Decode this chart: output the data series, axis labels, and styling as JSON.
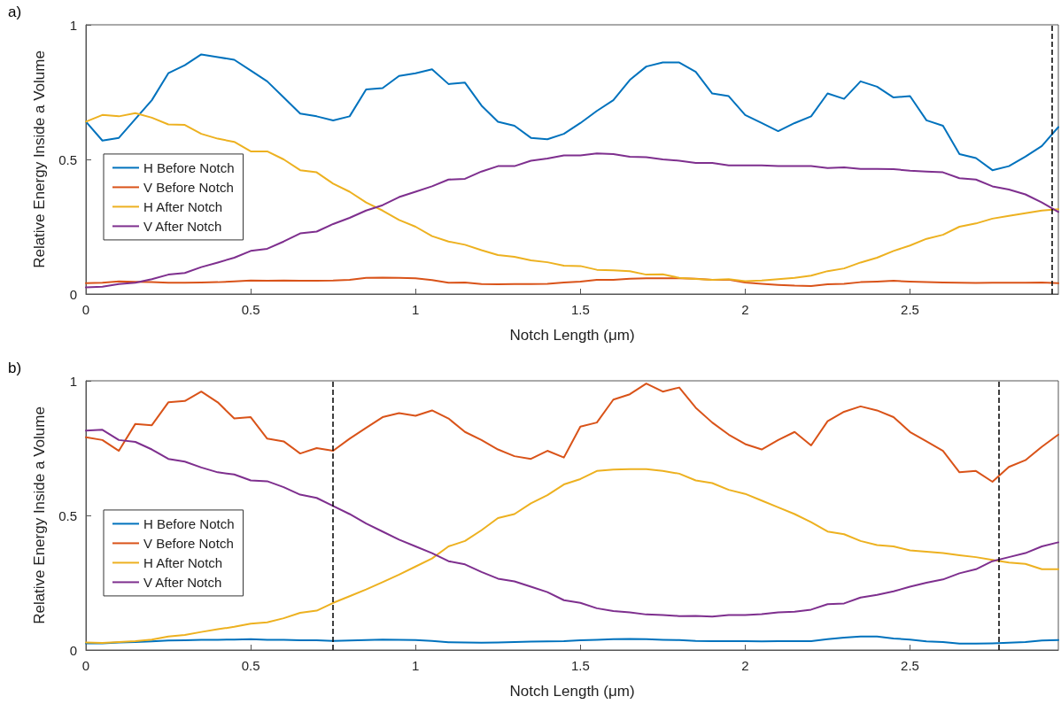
{
  "chart_data": [
    {
      "type": "line",
      "title": "a)",
      "xlabel": "Notch Length (μm)",
      "ylabel": "Relative Energy Inside a Volume",
      "x": [
        0,
        0.05,
        0.1,
        0.15,
        0.2,
        0.25,
        0.3,
        0.35,
        0.4,
        0.45,
        0.5,
        0.55,
        0.6,
        0.65,
        0.7,
        0.75,
        0.8,
        0.85,
        0.9,
        0.95,
        1,
        1.05,
        1.1,
        1.15,
        1.2,
        1.25,
        1.3,
        1.35,
        1.4,
        1.45,
        1.5,
        1.55,
        1.6,
        1.65,
        1.7,
        1.75,
        1.8,
        1.85,
        1.9,
        1.95,
        2,
        2.05,
        2.1,
        2.15,
        2.2,
        2.25,
        2.3,
        2.35,
        2.4,
        2.45,
        2.5,
        2.55,
        2.6,
        2.65,
        2.7,
        2.75,
        2.8,
        2.85,
        2.9,
        2.95
      ],
      "series": [
        {
          "name": "H Before Notch",
          "color": "#0072bd",
          "values": [
            0.64,
            0.57,
            0.58,
            0.65,
            0.72,
            0.82,
            0.85,
            0.89,
            0.88,
            0.87,
            0.83,
            0.79,
            0.73,
            0.67,
            0.66,
            0.645,
            0.66,
            0.76,
            0.765,
            0.81,
            0.82,
            0.835,
            0.78,
            0.785,
            0.7,
            0.64,
            0.625,
            0.58,
            0.575,
            0.595,
            0.635,
            0.68,
            0.72,
            0.795,
            0.845,
            0.86,
            0.86,
            0.825,
            0.745,
            0.735,
            0.665,
            0.635,
            0.605,
            0.635,
            0.66,
            0.745,
            0.725,
            0.79,
            0.77,
            0.73,
            0.735,
            0.645,
            0.625,
            0.52,
            0.505,
            0.46,
            0.475,
            0.51,
            0.55,
            0.62
          ]
        },
        {
          "name": "V Before Notch",
          "color": "#d95319",
          "values": [
            0.04,
            0.042,
            0.047,
            0.045,
            0.044,
            0.042,
            0.042,
            0.043,
            0.044,
            0.047,
            0.05,
            0.049,
            0.05,
            0.049,
            0.049,
            0.05,
            0.053,
            0.06,
            0.061,
            0.06,
            0.058,
            0.052,
            0.042,
            0.043,
            0.037,
            0.036,
            0.037,
            0.037,
            0.038,
            0.043,
            0.046,
            0.053,
            0.053,
            0.057,
            0.058,
            0.058,
            0.058,
            0.057,
            0.053,
            0.053,
            0.043,
            0.038,
            0.034,
            0.031,
            0.03,
            0.036,
            0.038,
            0.044,
            0.046,
            0.049,
            0.046,
            0.044,
            0.043,
            0.042,
            0.041,
            0.042,
            0.042,
            0.042,
            0.043,
            0.04
          ]
        },
        {
          "name": "H After Notch",
          "color": "#edb120",
          "values": [
            0.64,
            0.665,
            0.66,
            0.672,
            0.655,
            0.63,
            0.628,
            0.595,
            0.577,
            0.565,
            0.53,
            0.53,
            0.5,
            0.46,
            0.452,
            0.41,
            0.38,
            0.34,
            0.31,
            0.275,
            0.25,
            0.215,
            0.195,
            0.183,
            0.163,
            0.145,
            0.138,
            0.125,
            0.118,
            0.105,
            0.104,
            0.09,
            0.088,
            0.085,
            0.072,
            0.073,
            0.06,
            0.056,
            0.053,
            0.055,
            0.048,
            0.05,
            0.055,
            0.06,
            0.068,
            0.085,
            0.095,
            0.117,
            0.135,
            0.16,
            0.18,
            0.205,
            0.22,
            0.25,
            0.262,
            0.28,
            0.29,
            0.3,
            0.31,
            0.315
          ]
        },
        {
          "name": "V After Notch",
          "color": "#7e2f8e",
          "values": [
            0.025,
            0.027,
            0.037,
            0.042,
            0.055,
            0.072,
            0.078,
            0.1,
            0.117,
            0.135,
            0.16,
            0.168,
            0.195,
            0.225,
            0.232,
            0.26,
            0.283,
            0.31,
            0.33,
            0.36,
            0.38,
            0.4,
            0.425,
            0.428,
            0.455,
            0.475,
            0.475,
            0.495,
            0.503,
            0.515,
            0.515,
            0.522,
            0.52,
            0.51,
            0.508,
            0.5,
            0.495,
            0.487,
            0.487,
            0.478,
            0.478,
            0.478,
            0.475,
            0.475,
            0.475,
            0.468,
            0.47,
            0.465,
            0.465,
            0.464,
            0.458,
            0.455,
            0.452,
            0.43,
            0.425,
            0.4,
            0.388,
            0.37,
            0.34,
            0.305
          ]
        }
      ],
      "xlim": [
        0,
        2.95
      ],
      "xticks": [
        0,
        0.5,
        1,
        1.5,
        2,
        2.5
      ],
      "ylim": [
        0,
        1
      ],
      "yticks": [
        0,
        0.5,
        1
      ],
      "ref_lines": [
        {
          "axis": "x",
          "value": 2.93,
          "color": "#000000",
          "line_style": "dashed"
        }
      ],
      "grid": false,
      "legend": "left",
      "line_style": "solid",
      "marker": "none"
    },
    {
      "type": "line",
      "title": "b)",
      "xlabel": "Notch Length (μm)",
      "ylabel": "Relative Energy Inside a Volume",
      "x": [
        0,
        0.05,
        0.1,
        0.15,
        0.2,
        0.25,
        0.3,
        0.35,
        0.4,
        0.45,
        0.5,
        0.55,
        0.6,
        0.65,
        0.7,
        0.75,
        0.8,
        0.85,
        0.9,
        0.95,
        1,
        1.05,
        1.1,
        1.15,
        1.2,
        1.25,
        1.3,
        1.35,
        1.4,
        1.45,
        1.5,
        1.55,
        1.6,
        1.65,
        1.7,
        1.75,
        1.8,
        1.85,
        1.9,
        1.95,
        2,
        2.05,
        2.1,
        2.15,
        2.2,
        2.25,
        2.3,
        2.35,
        2.4,
        2.45,
        2.5,
        2.55,
        2.6,
        2.65,
        2.7,
        2.75,
        2.8,
        2.85,
        2.9,
        2.95
      ],
      "series": [
        {
          "name": "H Before Notch",
          "color": "#0072bd",
          "values": [
            0.025,
            0.025,
            0.028,
            0.03,
            0.032,
            0.035,
            0.036,
            0.038,
            0.038,
            0.039,
            0.04,
            0.038,
            0.038,
            0.036,
            0.036,
            0.034,
            0.035,
            0.037,
            0.039,
            0.038,
            0.037,
            0.034,
            0.029,
            0.028,
            0.027,
            0.028,
            0.03,
            0.031,
            0.032,
            0.033,
            0.036,
            0.038,
            0.04,
            0.041,
            0.04,
            0.038,
            0.037,
            0.034,
            0.033,
            0.033,
            0.033,
            0.032,
            0.033,
            0.033,
            0.033,
            0.04,
            0.046,
            0.05,
            0.05,
            0.043,
            0.039,
            0.032,
            0.03,
            0.024,
            0.024,
            0.025,
            0.027,
            0.03,
            0.035,
            0.037
          ]
        },
        {
          "name": "V Before Notch",
          "color": "#d95319",
          "values": [
            0.79,
            0.78,
            0.74,
            0.84,
            0.835,
            0.92,
            0.925,
            0.96,
            0.92,
            0.86,
            0.865,
            0.785,
            0.775,
            0.73,
            0.75,
            0.74,
            0.785,
            0.825,
            0.865,
            0.88,
            0.87,
            0.89,
            0.86,
            0.81,
            0.78,
            0.745,
            0.72,
            0.71,
            0.74,
            0.715,
            0.83,
            0.845,
            0.93,
            0.95,
            0.99,
            0.96,
            0.975,
            0.9,
            0.845,
            0.8,
            0.765,
            0.745,
            0.78,
            0.81,
            0.76,
            0.85,
            0.885,
            0.905,
            0.89,
            0.865,
            0.81,
            0.775,
            0.74,
            0.66,
            0.665,
            0.625,
            0.68,
            0.705,
            0.755,
            0.8
          ]
        },
        {
          "name": "H After Notch",
          "color": "#edb120",
          "values": [
            0.028,
            0.026,
            0.03,
            0.033,
            0.039,
            0.05,
            0.056,
            0.067,
            0.077,
            0.086,
            0.098,
            0.103,
            0.118,
            0.138,
            0.146,
            0.175,
            0.2,
            0.225,
            0.252,
            0.28,
            0.31,
            0.34,
            0.385,
            0.405,
            0.445,
            0.49,
            0.505,
            0.545,
            0.575,
            0.615,
            0.635,
            0.665,
            0.67,
            0.672,
            0.672,
            0.665,
            0.655,
            0.63,
            0.62,
            0.595,
            0.58,
            0.555,
            0.53,
            0.505,
            0.475,
            0.44,
            0.43,
            0.405,
            0.39,
            0.385,
            0.37,
            0.365,
            0.36,
            0.352,
            0.345,
            0.335,
            0.325,
            0.32,
            0.3,
            0.3
          ]
        },
        {
          "name": "V After Notch",
          "color": "#7e2f8e",
          "values": [
            0.815,
            0.818,
            0.78,
            0.773,
            0.745,
            0.71,
            0.7,
            0.678,
            0.66,
            0.652,
            0.63,
            0.627,
            0.605,
            0.577,
            0.565,
            0.535,
            0.505,
            0.47,
            0.44,
            0.41,
            0.385,
            0.36,
            0.33,
            0.318,
            0.29,
            0.265,
            0.255,
            0.235,
            0.215,
            0.185,
            0.175,
            0.155,
            0.145,
            0.14,
            0.132,
            0.13,
            0.126,
            0.127,
            0.124,
            0.13,
            0.13,
            0.133,
            0.14,
            0.142,
            0.15,
            0.17,
            0.173,
            0.195,
            0.205,
            0.218,
            0.235,
            0.25,
            0.262,
            0.285,
            0.3,
            0.33,
            0.345,
            0.36,
            0.385,
            0.4
          ]
        }
      ],
      "xlim": [
        0,
        2.95
      ],
      "xticks": [
        0,
        0.5,
        1,
        1.5,
        2,
        2.5
      ],
      "ylim": [
        0,
        1
      ],
      "yticks": [
        0,
        0.5,
        1
      ],
      "ref_lines": [
        {
          "axis": "x",
          "value": 0.75,
          "color": "#000000",
          "line_style": "dashed"
        },
        {
          "axis": "x",
          "value": 2.77,
          "color": "#000000",
          "line_style": "dashed"
        }
      ],
      "grid": false,
      "legend": "left",
      "line_style": "solid",
      "marker": "none"
    }
  ]
}
